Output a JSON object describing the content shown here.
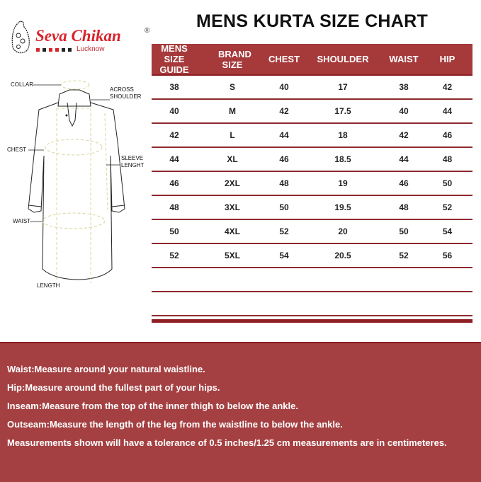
{
  "brand": {
    "name": "Seva Chikan",
    "registered": "®",
    "location": "Lucknow"
  },
  "title": "MENS KURTA SIZE CHART",
  "diagram_labels": {
    "collar": "COLLAR",
    "across_shoulder": "ACROSS SHOULDER",
    "chest": "CHEST",
    "sleeve_length": "SLEEVE LENGHT",
    "waist": "WAIST",
    "length": "LENGTH"
  },
  "table": {
    "headers": [
      "MENS SIZE GUIDE",
      "BRAND SIZE",
      "CHEST",
      "SHOULDER",
      "WAIST",
      "HIP"
    ],
    "rows": [
      [
        "38",
        "S",
        "40",
        "17",
        "38",
        "42"
      ],
      [
        "40",
        "M",
        "42",
        "17.5",
        "40",
        "44"
      ],
      [
        "42",
        "L",
        "44",
        "18",
        "42",
        "46"
      ],
      [
        "44",
        "XL",
        "46",
        "18.5",
        "44",
        "48"
      ],
      [
        "46",
        "2XL",
        "48",
        "19",
        "46",
        "50"
      ],
      [
        "48",
        "3XL",
        "50",
        "19.5",
        "48",
        "52"
      ],
      [
        "50",
        "4XL",
        "52",
        "20",
        "50",
        "54"
      ],
      [
        "52",
        "5XL",
        "54",
        "20.5",
        "52",
        "56"
      ]
    ]
  },
  "notes": [
    "Waist:Measure around your natural waistline.",
    "Hip:Measure around the fullest part of your hips.",
    "Inseam:Measure from the top of the inner thigh to below the ankle.",
    "Outseam:Measure the length of the leg from the waistline to below the ankle.",
    "Measurements shown will have a tolerance of 0.5 inches/1.25 cm measurements are in centimeteres."
  ],
  "colors": {
    "accent": "#a63a3b",
    "line": "#8e2a2d",
    "logo_red": "#d8232a"
  }
}
